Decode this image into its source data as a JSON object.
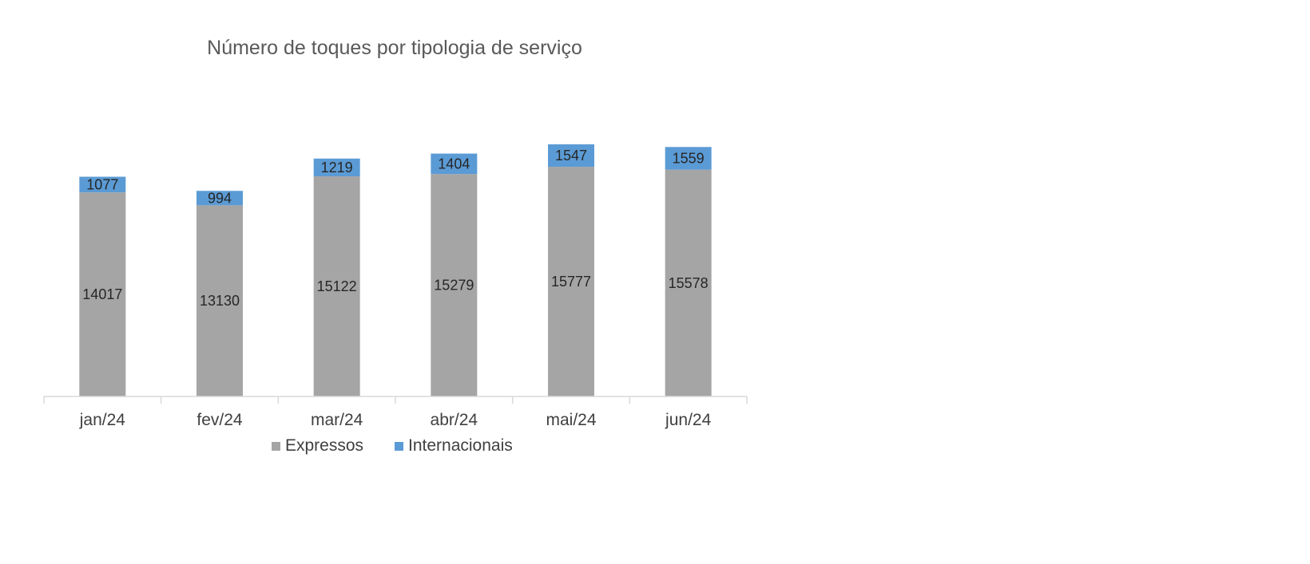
{
  "chart_data": {
    "type": "bar",
    "stacked": true,
    "title": "Número de toques por tipologia de serviço",
    "xlabel": "",
    "ylabel": "",
    "categories": [
      "jan/24",
      "fev/24",
      "mar/24",
      "abr/24",
      "mai/24",
      "jun/24"
    ],
    "series": [
      {
        "name": "Expressos",
        "color": "#A5A5A5",
        "values": [
          14017,
          13130,
          15122,
          15279,
          15777,
          15578
        ]
      },
      {
        "name": "Internacionais",
        "color": "#5B9BD5",
        "values": [
          1077,
          994,
          1219,
          1404,
          1547,
          1559
        ]
      }
    ],
    "ylim": [
      0,
      18000
    ],
    "grid": false,
    "data_labels": true,
    "legend_position": "bottom"
  }
}
